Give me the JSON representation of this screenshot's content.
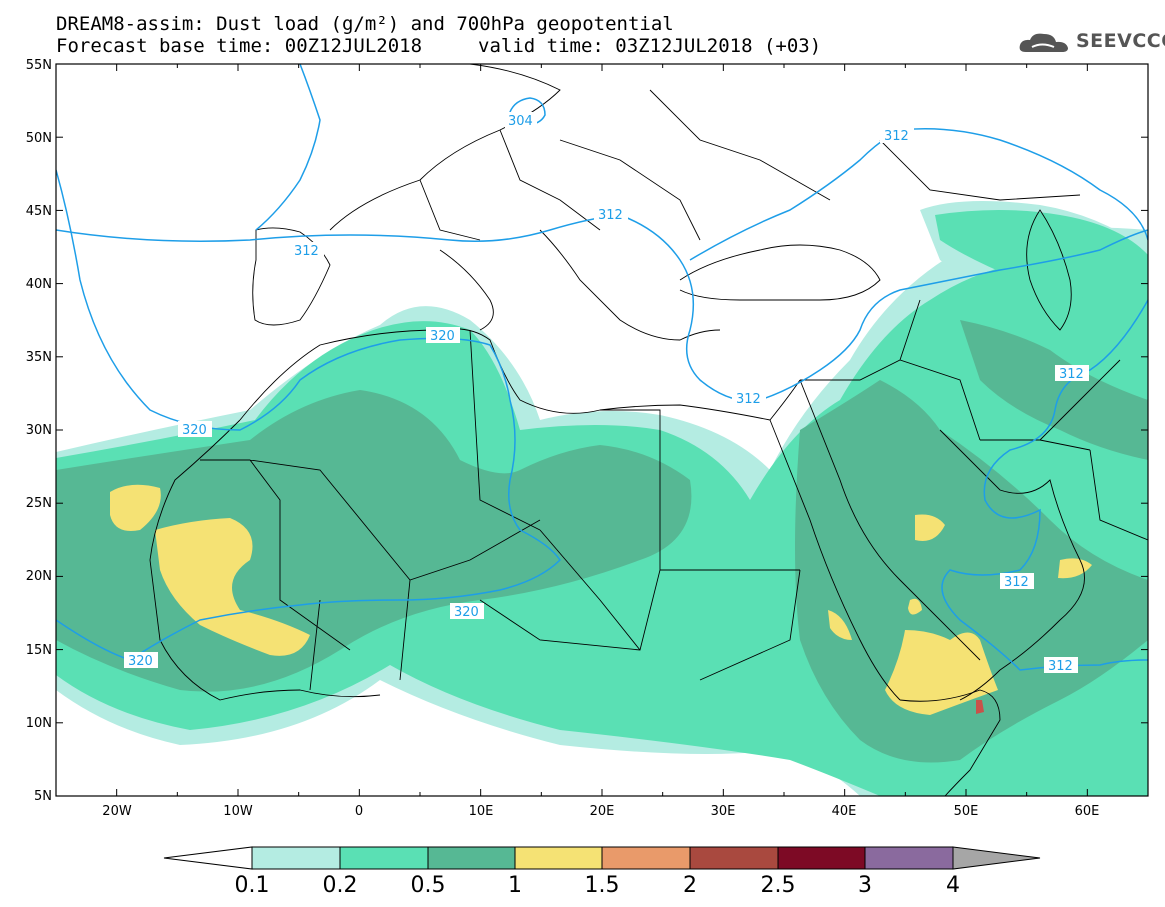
{
  "header": {
    "title_line1": "DREAM8-assim: Dust load (g/m²) and 700hPa geopotential",
    "title_line2": "Forecast base time: 00Z12JUL2018",
    "valid_time": "valid time: 03Z12JUL2018 (+03)",
    "logo_text": "SEEVCCC"
  },
  "map": {
    "lat_labels": [
      "55N",
      "50N",
      "45N",
      "40N",
      "35N",
      "30N",
      "25N",
      "20N",
      "15N",
      "10N",
      "5N"
    ],
    "lon_labels": [
      "20W",
      "10W",
      "0",
      "10E",
      "20E",
      "30E",
      "40E",
      "50E",
      "60E"
    ],
    "contour_labels": [
      "304",
      "312",
      "312",
      "312",
      "312",
      "312",
      "312",
      "320",
      "320",
      "320",
      "320"
    ]
  },
  "legend": {
    "labels": [
      "0.1",
      "0.2",
      "0.5",
      "1",
      "1.5",
      "2",
      "2.5",
      "3",
      "4"
    ],
    "colors": [
      "#b4ece2",
      "#5ae0b4",
      "#56b894",
      "#f5e274",
      "#e99a6a",
      "#a9493f",
      "#7d0a25",
      "#8a6a9e",
      "#a6a6a6"
    ]
  },
  "colors": {
    "dust_01": "#b4ece2",
    "dust_02": "#5ae0b4",
    "dust_05": "#56b894",
    "dust_1": "#f5e274",
    "dust_25": "#c8524a",
    "contour": "#1e9ee8",
    "border": "#000000"
  }
}
